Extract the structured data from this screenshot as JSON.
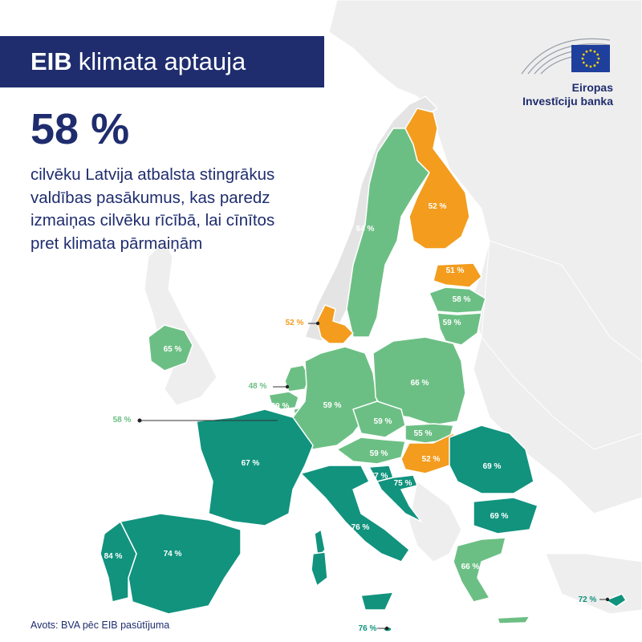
{
  "header": {
    "title_bold": "EIB",
    "title_rest": "klimata aptauja"
  },
  "headline": {
    "percent": "58 %",
    "lines": [
      "cilvēku Latvija atbalsta stingrākus",
      "valdības pasākumus, kas paredz",
      "izmaiņas cilvēku rīcībā, lai cīnītos",
      "pret klimata pārmaiņām"
    ]
  },
  "logo": {
    "line1": "Eiropas",
    "line2": "Investīciju banka"
  },
  "source": "Avots: BVA pēc EIB pasūtījuma",
  "colors": {
    "brand_navy": "#1f2d6e",
    "teal": "#11937e",
    "light_green": "#6cbf84",
    "orange": "#f39c1e",
    "background_land": "#eeeeee",
    "sea": "#ffffff"
  },
  "countries": [
    {
      "id": "finland",
      "label": "52 %",
      "color": "orange"
    },
    {
      "id": "sweden",
      "label": "64 %",
      "color": "light_green"
    },
    {
      "id": "estonia",
      "label": "51 %",
      "color": "orange"
    },
    {
      "id": "latvia",
      "label": "58 %",
      "color": "light_green"
    },
    {
      "id": "lithuania",
      "label": "59 %",
      "color": "light_green"
    },
    {
      "id": "denmark",
      "label": "52 %",
      "color": "orange"
    },
    {
      "id": "ireland",
      "label": "65 %",
      "color": "light_green"
    },
    {
      "id": "netherlands",
      "label": "48 %",
      "color": "light_green"
    },
    {
      "id": "belgium",
      "label": "58 %",
      "color": "light_green"
    },
    {
      "id": "luxembourg",
      "label": "59 %",
      "color": "light_green"
    },
    {
      "id": "germany",
      "label": "59 %",
      "color": "light_green"
    },
    {
      "id": "poland",
      "label": "66 %",
      "color": "light_green"
    },
    {
      "id": "czechia",
      "label": "59 %",
      "color": "light_green"
    },
    {
      "id": "slovakia",
      "label": "55 %",
      "color": "light_green"
    },
    {
      "id": "austria",
      "label": "59 %",
      "color": "light_green"
    },
    {
      "id": "hungary",
      "label": "52 %",
      "color": "orange"
    },
    {
      "id": "slovenia",
      "label": "77 %",
      "color": "teal"
    },
    {
      "id": "croatia",
      "label": "75 %",
      "color": "teal"
    },
    {
      "id": "romania",
      "label": "69 %",
      "color": "teal"
    },
    {
      "id": "bulgaria",
      "label": "69 %",
      "color": "teal"
    },
    {
      "id": "france",
      "label": "67 %",
      "color": "teal"
    },
    {
      "id": "spain",
      "label": "74 %",
      "color": "teal"
    },
    {
      "id": "portugal",
      "label": "84 %",
      "color": "teal"
    },
    {
      "id": "italy",
      "label": "76 %",
      "color": "teal"
    },
    {
      "id": "greece",
      "label": "66 %",
      "color": "light_green"
    },
    {
      "id": "malta",
      "label": "76 %",
      "color": "teal"
    },
    {
      "id": "cyprus",
      "label": "72 %",
      "color": "teal"
    }
  ]
}
